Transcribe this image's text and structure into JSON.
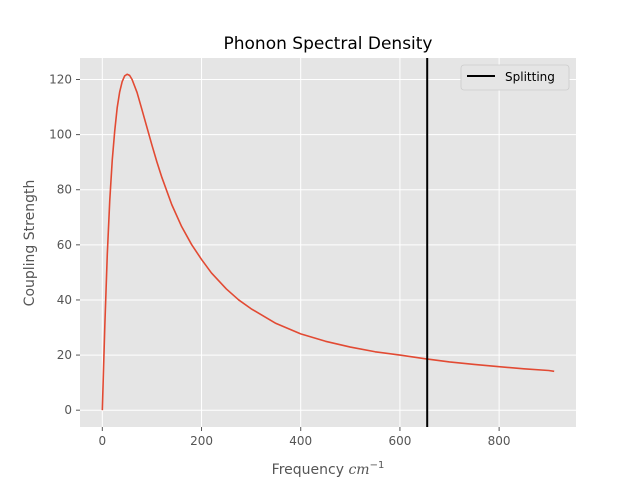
{
  "chart_data": {
    "type": "line",
    "title": "Phonon Spectral Density",
    "xlabel_text": "Frequency ",
    "xlabel_unit": "cm",
    "xlabel_exp": "−1",
    "ylabel": "Coupling Strength",
    "xlim": [
      -45,
      955
    ],
    "ylim": [
      -6.1,
      127.8
    ],
    "xticks": [
      0,
      200,
      400,
      600,
      800
    ],
    "yticks": [
      0,
      20,
      40,
      60,
      80,
      100,
      120
    ],
    "grid": true,
    "legend_position": "upper-right",
    "series": [
      {
        "color": "#E24A33",
        "x": [
          0,
          5,
          10,
          15,
          20,
          25,
          30,
          35,
          40,
          45,
          50,
          55,
          60,
          70,
          80,
          90,
          100,
          110,
          120,
          140,
          160,
          180,
          200,
          220,
          250,
          275,
          300,
          350,
          400,
          450,
          500,
          550,
          600,
          650,
          700,
          750,
          800,
          850,
          900,
          911
        ],
        "y": [
          0,
          30.4,
          56.5,
          76.1,
          90.7,
          101.3,
          109.8,
          115.5,
          119.2,
          121.3,
          121.9,
          121.5,
          120.0,
          115.3,
          109.0,
          102.6,
          96.2,
          90.1,
          84.5,
          74.6,
          66.6,
          60.1,
          54.7,
          49.8,
          44.0,
          40.0,
          36.8,
          31.5,
          27.7,
          25.0,
          22.9,
          21.2,
          20.0,
          18.7,
          17.5,
          16.6,
          15.8,
          15.0,
          14.4,
          14.1
        ]
      }
    ],
    "vline": {
      "name": "Splitting",
      "x": 655,
      "color": "#000000"
    },
    "colors": {
      "background": "#E5E5E5",
      "grid": "#FFFFFF",
      "tick_text": "#555555"
    }
  }
}
